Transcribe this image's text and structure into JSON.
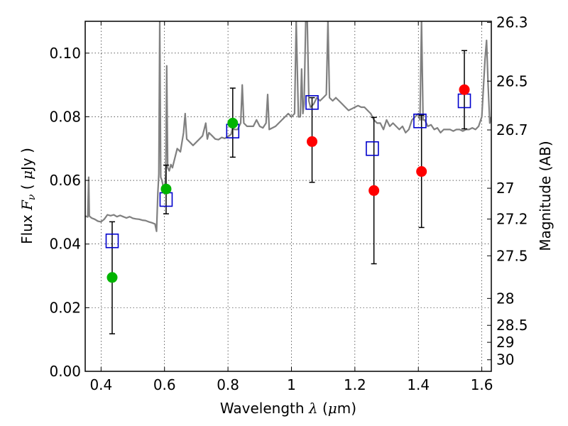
{
  "chart_data": {
    "type": "scatter",
    "xlabel": {
      "prefix": "Wavelength",
      "symbol": "λ",
      "unit_open": "(",
      "unit_mu": "μ",
      "unit_rest": "m)"
    },
    "ylabel": {
      "prefix": "Flux",
      "symbol": "F",
      "subscript": "ν",
      "open": "(",
      "mu": "μ",
      "rest": "Jy )"
    },
    "ylabel_right": "Magnitude (AB)",
    "xlim": [
      0.35,
      1.63
    ],
    "ylim": [
      0.0,
      0.11
    ],
    "grid": true,
    "x_ticks": [
      {
        "value": 0.4,
        "label": "0.4"
      },
      {
        "value": 0.6,
        "label": "0.6"
      },
      {
        "value": 0.8,
        "label": "0.8"
      },
      {
        "value": 1.0,
        "label": "1"
      },
      {
        "value": 1.2,
        "label": "1.2"
      },
      {
        "value": 1.4,
        "label": "1.4"
      },
      {
        "value": 1.6,
        "label": "1.6"
      }
    ],
    "y_ticks": [
      {
        "value": 0.0,
        "label": "0.00"
      },
      {
        "value": 0.02,
        "label": "0.02"
      },
      {
        "value": 0.04,
        "label": "0.04"
      },
      {
        "value": 0.06,
        "label": "0.06"
      },
      {
        "value": 0.08,
        "label": "0.08"
      },
      {
        "value": 0.1,
        "label": "0.10"
      }
    ],
    "right_ticks": [
      {
        "mag": 26.3,
        "label": "26.3"
      },
      {
        "mag": 26.5,
        "label": "26.5"
      },
      {
        "mag": 26.7,
        "label": "26.7"
      },
      {
        "mag": 27,
        "label": "27"
      },
      {
        "mag": 27.2,
        "label": "27.2"
      },
      {
        "mag": 27.5,
        "label": "27.5"
      },
      {
        "mag": 28,
        "label": "28"
      },
      {
        "mag": 28.5,
        "label": "28.5"
      },
      {
        "mag": 29,
        "label": "29"
      },
      {
        "mag": 30,
        "label": "30"
      }
    ],
    "spectrum": {
      "color": "#808080",
      "points": [
        [
          0.35,
          0.0488
        ],
        [
          0.358,
          0.0485
        ],
        [
          0.361,
          0.061
        ],
        [
          0.363,
          0.0488
        ],
        [
          0.37,
          0.0482
        ],
        [
          0.38,
          0.0478
        ],
        [
          0.39,
          0.0472
        ],
        [
          0.4,
          0.047
        ],
        [
          0.41,
          0.0478
        ],
        [
          0.42,
          0.0492
        ],
        [
          0.43,
          0.0489
        ],
        [
          0.44,
          0.0492
        ],
        [
          0.45,
          0.0486
        ],
        [
          0.46,
          0.049
        ],
        [
          0.47,
          0.0486
        ],
        [
          0.48,
          0.0482
        ],
        [
          0.49,
          0.0486
        ],
        [
          0.5,
          0.0481
        ],
        [
          0.51,
          0.0479
        ],
        [
          0.52,
          0.0478
        ],
        [
          0.53,
          0.0475
        ],
        [
          0.54,
          0.0474
        ],
        [
          0.55,
          0.047
        ],
        [
          0.56,
          0.0467
        ],
        [
          0.57,
          0.0463
        ],
        [
          0.575,
          0.044
        ],
        [
          0.579,
          0.056
        ],
        [
          0.582,
          0.062
        ],
        [
          0.585,
          0.11
        ],
        [
          0.588,
          0.061
        ],
        [
          0.592,
          0.06
        ],
        [
          0.596,
          0.058
        ],
        [
          0.6,
          0.057
        ],
        [
          0.604,
          0.062
        ],
        [
          0.607,
          0.096
        ],
        [
          0.61,
          0.064
        ],
        [
          0.615,
          0.063
        ],
        [
          0.62,
          0.065
        ],
        [
          0.625,
          0.064
        ],
        [
          0.63,
          0.066
        ],
        [
          0.64,
          0.07
        ],
        [
          0.65,
          0.069
        ],
        [
          0.66,
          0.075
        ],
        [
          0.665,
          0.081
        ],
        [
          0.67,
          0.073
        ],
        [
          0.68,
          0.072
        ],
        [
          0.69,
          0.071
        ],
        [
          0.7,
          0.072
        ],
        [
          0.71,
          0.073
        ],
        [
          0.72,
          0.074
        ],
        [
          0.73,
          0.078
        ],
        [
          0.735,
          0.073
        ],
        [
          0.74,
          0.075
        ],
        [
          0.75,
          0.074
        ],
        [
          0.76,
          0.073
        ],
        [
          0.77,
          0.0728
        ],
        [
          0.78,
          0.0735
        ],
        [
          0.79,
          0.0732
        ],
        [
          0.8,
          0.0738
        ],
        [
          0.81,
          0.0745
        ],
        [
          0.815,
          0.077
        ],
        [
          0.82,
          0.076
        ],
        [
          0.83,
          0.076
        ],
        [
          0.84,
          0.078
        ],
        [
          0.845,
          0.09
        ],
        [
          0.85,
          0.078
        ],
        [
          0.86,
          0.077
        ],
        [
          0.87,
          0.077
        ],
        [
          0.88,
          0.077
        ],
        [
          0.89,
          0.079
        ],
        [
          0.9,
          0.077
        ],
        [
          0.91,
          0.0765
        ],
        [
          0.92,
          0.078
        ],
        [
          0.925,
          0.087
        ],
        [
          0.93,
          0.076
        ],
        [
          0.94,
          0.0765
        ],
        [
          0.95,
          0.077
        ],
        [
          0.96,
          0.078
        ],
        [
          0.97,
          0.079
        ],
        [
          0.98,
          0.08
        ],
        [
          0.99,
          0.081
        ],
        [
          1.0,
          0.08
        ],
        [
          1.01,
          0.081
        ],
        [
          1.015,
          0.11
        ],
        [
          1.022,
          0.08
        ],
        [
          1.028,
          0.08
        ],
        [
          1.032,
          0.095
        ],
        [
          1.036,
          0.081
        ],
        [
          1.04,
          0.084
        ],
        [
          1.045,
          0.11
        ],
        [
          1.05,
          0.11
        ],
        [
          1.055,
          0.085
        ],
        [
          1.06,
          0.083
        ],
        [
          1.07,
          0.084
        ],
        [
          1.08,
          0.086
        ],
        [
          1.09,
          0.085
        ],
        [
          1.1,
          0.086
        ],
        [
          1.11,
          0.087
        ],
        [
          1.115,
          0.11
        ],
        [
          1.12,
          0.086
        ],
        [
          1.13,
          0.085
        ],
        [
          1.14,
          0.086
        ],
        [
          1.15,
          0.085
        ],
        [
          1.16,
          0.084
        ],
        [
          1.17,
          0.083
        ],
        [
          1.18,
          0.082
        ],
        [
          1.19,
          0.0825
        ],
        [
          1.2,
          0.083
        ],
        [
          1.21,
          0.0835
        ],
        [
          1.22,
          0.083
        ],
        [
          1.23,
          0.083
        ],
        [
          1.24,
          0.082
        ],
        [
          1.25,
          0.081
        ],
        [
          1.26,
          0.079
        ],
        [
          1.27,
          0.078
        ],
        [
          1.28,
          0.078
        ],
        [
          1.29,
          0.076
        ],
        [
          1.3,
          0.079
        ],
        [
          1.31,
          0.077
        ],
        [
          1.32,
          0.078
        ],
        [
          1.33,
          0.077
        ],
        [
          1.34,
          0.076
        ],
        [
          1.35,
          0.077
        ],
        [
          1.36,
          0.075
        ],
        [
          1.37,
          0.076
        ],
        [
          1.38,
          0.079
        ],
        [
          1.39,
          0.08
        ],
        [
          1.4,
          0.081
        ],
        [
          1.405,
          0.079
        ],
        [
          1.41,
          0.11
        ],
        [
          1.415,
          0.079
        ],
        [
          1.42,
          0.079
        ],
        [
          1.43,
          0.077
        ],
        [
          1.44,
          0.0775
        ],
        [
          1.45,
          0.076
        ],
        [
          1.46,
          0.0765
        ],
        [
          1.47,
          0.075
        ],
        [
          1.48,
          0.076
        ],
        [
          1.49,
          0.076
        ],
        [
          1.5,
          0.076
        ],
        [
          1.51,
          0.0755
        ],
        [
          1.52,
          0.076
        ],
        [
          1.53,
          0.076
        ],
        [
          1.54,
          0.0755
        ],
        [
          1.55,
          0.076
        ],
        [
          1.56,
          0.076
        ],
        [
          1.57,
          0.0765
        ],
        [
          1.58,
          0.076
        ],
        [
          1.59,
          0.077
        ],
        [
          1.6,
          0.08
        ],
        [
          1.61,
          0.098
        ],
        [
          1.615,
          0.104
        ],
        [
          1.62,
          0.09
        ],
        [
          1.625,
          0.078
        ],
        [
          1.63,
          0.08
        ]
      ]
    },
    "model_points": {
      "color": "#0000cc",
      "points": [
        [
          0.435,
          0.041
        ],
        [
          0.605,
          0.054
        ],
        [
          0.815,
          0.0755
        ],
        [
          1.065,
          0.0845
        ],
        [
          1.255,
          0.07
        ],
        [
          1.405,
          0.0787
        ],
        [
          1.545,
          0.085
        ]
      ]
    },
    "observed_points": [
      {
        "x": 0.435,
        "y": 0.0295,
        "err_lo": 0.0118,
        "err_hi": 0.047,
        "color": "#00b400"
      },
      {
        "x": 0.605,
        "y": 0.0573,
        "err_lo": 0.0495,
        "err_hi": 0.0648,
        "color": "#00b400"
      },
      {
        "x": 0.815,
        "y": 0.078,
        "err_lo": 0.0673,
        "err_hi": 0.089,
        "color": "#00b400"
      },
      {
        "x": 1.065,
        "y": 0.0722,
        "err_lo": 0.0594,
        "err_hi": 0.086,
        "color": "#ff0000"
      },
      {
        "x": 1.26,
        "y": 0.0568,
        "err_lo": 0.0338,
        "err_hi": 0.0798,
        "color": "#ff0000"
      },
      {
        "x": 1.41,
        "y": 0.0628,
        "err_lo": 0.0452,
        "err_hi": 0.0805,
        "color": "#ff0000"
      },
      {
        "x": 1.545,
        "y": 0.0885,
        "err_lo": 0.0762,
        "err_hi": 0.1008,
        "color": "#ff0000"
      }
    ]
  }
}
